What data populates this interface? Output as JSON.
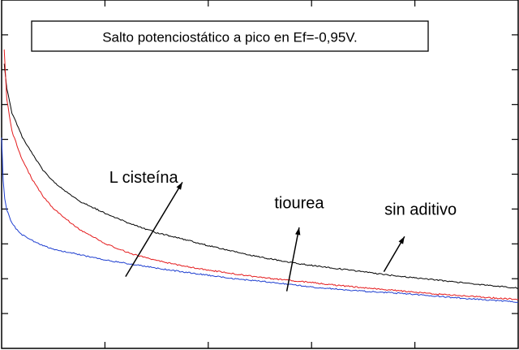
{
  "chart_data": {
    "type": "line",
    "title": "Salto potenciostático a pico en Ef=-0,95V.",
    "xlabel": "",
    "ylabel": "",
    "xlim": [
      0,
      100
    ],
    "ylim": [
      0,
      100
    ],
    "grid": false,
    "legend": "none",
    "series": [
      {
        "name": "sin aditivo",
        "color": "#000000",
        "x": [
          0.5,
          1,
          2,
          4,
          6,
          8,
          10,
          12,
          15,
          20,
          25,
          30,
          35,
          40,
          45,
          50,
          55,
          60,
          65,
          70,
          75,
          80,
          85,
          90,
          95,
          100
        ],
        "y": [
          81.7,
          74.6,
          67.6,
          60.7,
          55.7,
          51.2,
          47.9,
          45.6,
          42.3,
          38.8,
          35.7,
          33.2,
          31.4,
          29.5,
          27.8,
          26.2,
          24.9,
          23.8,
          22.9,
          22.0,
          21.0,
          20.3,
          19.5,
          18.7,
          18.0,
          17.3
        ]
      },
      {
        "name": "tiourea",
        "color": "#e41a1c",
        "x": [
          0.5,
          1,
          2,
          4,
          6,
          8,
          10,
          12,
          15,
          20,
          25,
          30,
          35,
          40,
          45,
          50,
          55,
          60,
          65,
          70,
          75,
          80,
          85,
          90,
          95,
          100
        ],
        "y": [
          85.8,
          71.5,
          62.3,
          54.1,
          48.3,
          43.7,
          40.2,
          37.7,
          34.2,
          30.1,
          27.2,
          25.2,
          23.7,
          22.5,
          21.4,
          20.4,
          19.6,
          18.9,
          18.1,
          17.4,
          16.8,
          16.1,
          15.5,
          15.0,
          14.5,
          14.1
        ]
      },
      {
        "name": "L cisteína",
        "color": "#1f3fd0",
        "x": [
          0,
          0.3,
          0.6,
          1,
          2,
          3,
          4,
          6,
          8,
          10,
          12,
          15,
          20,
          25,
          30,
          35,
          40,
          45,
          50,
          55,
          60,
          65,
          70,
          75,
          80,
          85,
          90,
          95,
          100
        ],
        "y": [
          60.5,
          48.3,
          43.0,
          39.7,
          35.9,
          34.0,
          32.6,
          30.9,
          29.5,
          28.5,
          27.8,
          26.9,
          25.4,
          24.2,
          23.0,
          22.0,
          21.0,
          20.0,
          19.3,
          18.5,
          17.6,
          17.0,
          16.4,
          16.0,
          15.5,
          14.9,
          14.3,
          13.8,
          13.3
        ]
      }
    ],
    "annotations": [
      {
        "text": "L cisteína",
        "series": "L cisteína",
        "label_at": [
          27.5,
          47.6
        ],
        "arrow_from": [
          24.0,
          20.6
        ],
        "arrow_to": [
          35.0,
          47.7
        ]
      },
      {
        "text": "tiourea",
        "series": "tiourea",
        "label_at": [
          57.6,
          40.2
        ],
        "arrow_from": [
          55.2,
          16.4
        ],
        "arrow_to": [
          57.6,
          34.7
        ]
      },
      {
        "text": "sin aditivo",
        "series": "sin aditivo",
        "label_at": [
          81.1,
          38.3
        ],
        "arrow_from": [
          74.0,
          22.0
        ],
        "arrow_to": [
          78.0,
          32.1
        ]
      }
    ]
  }
}
